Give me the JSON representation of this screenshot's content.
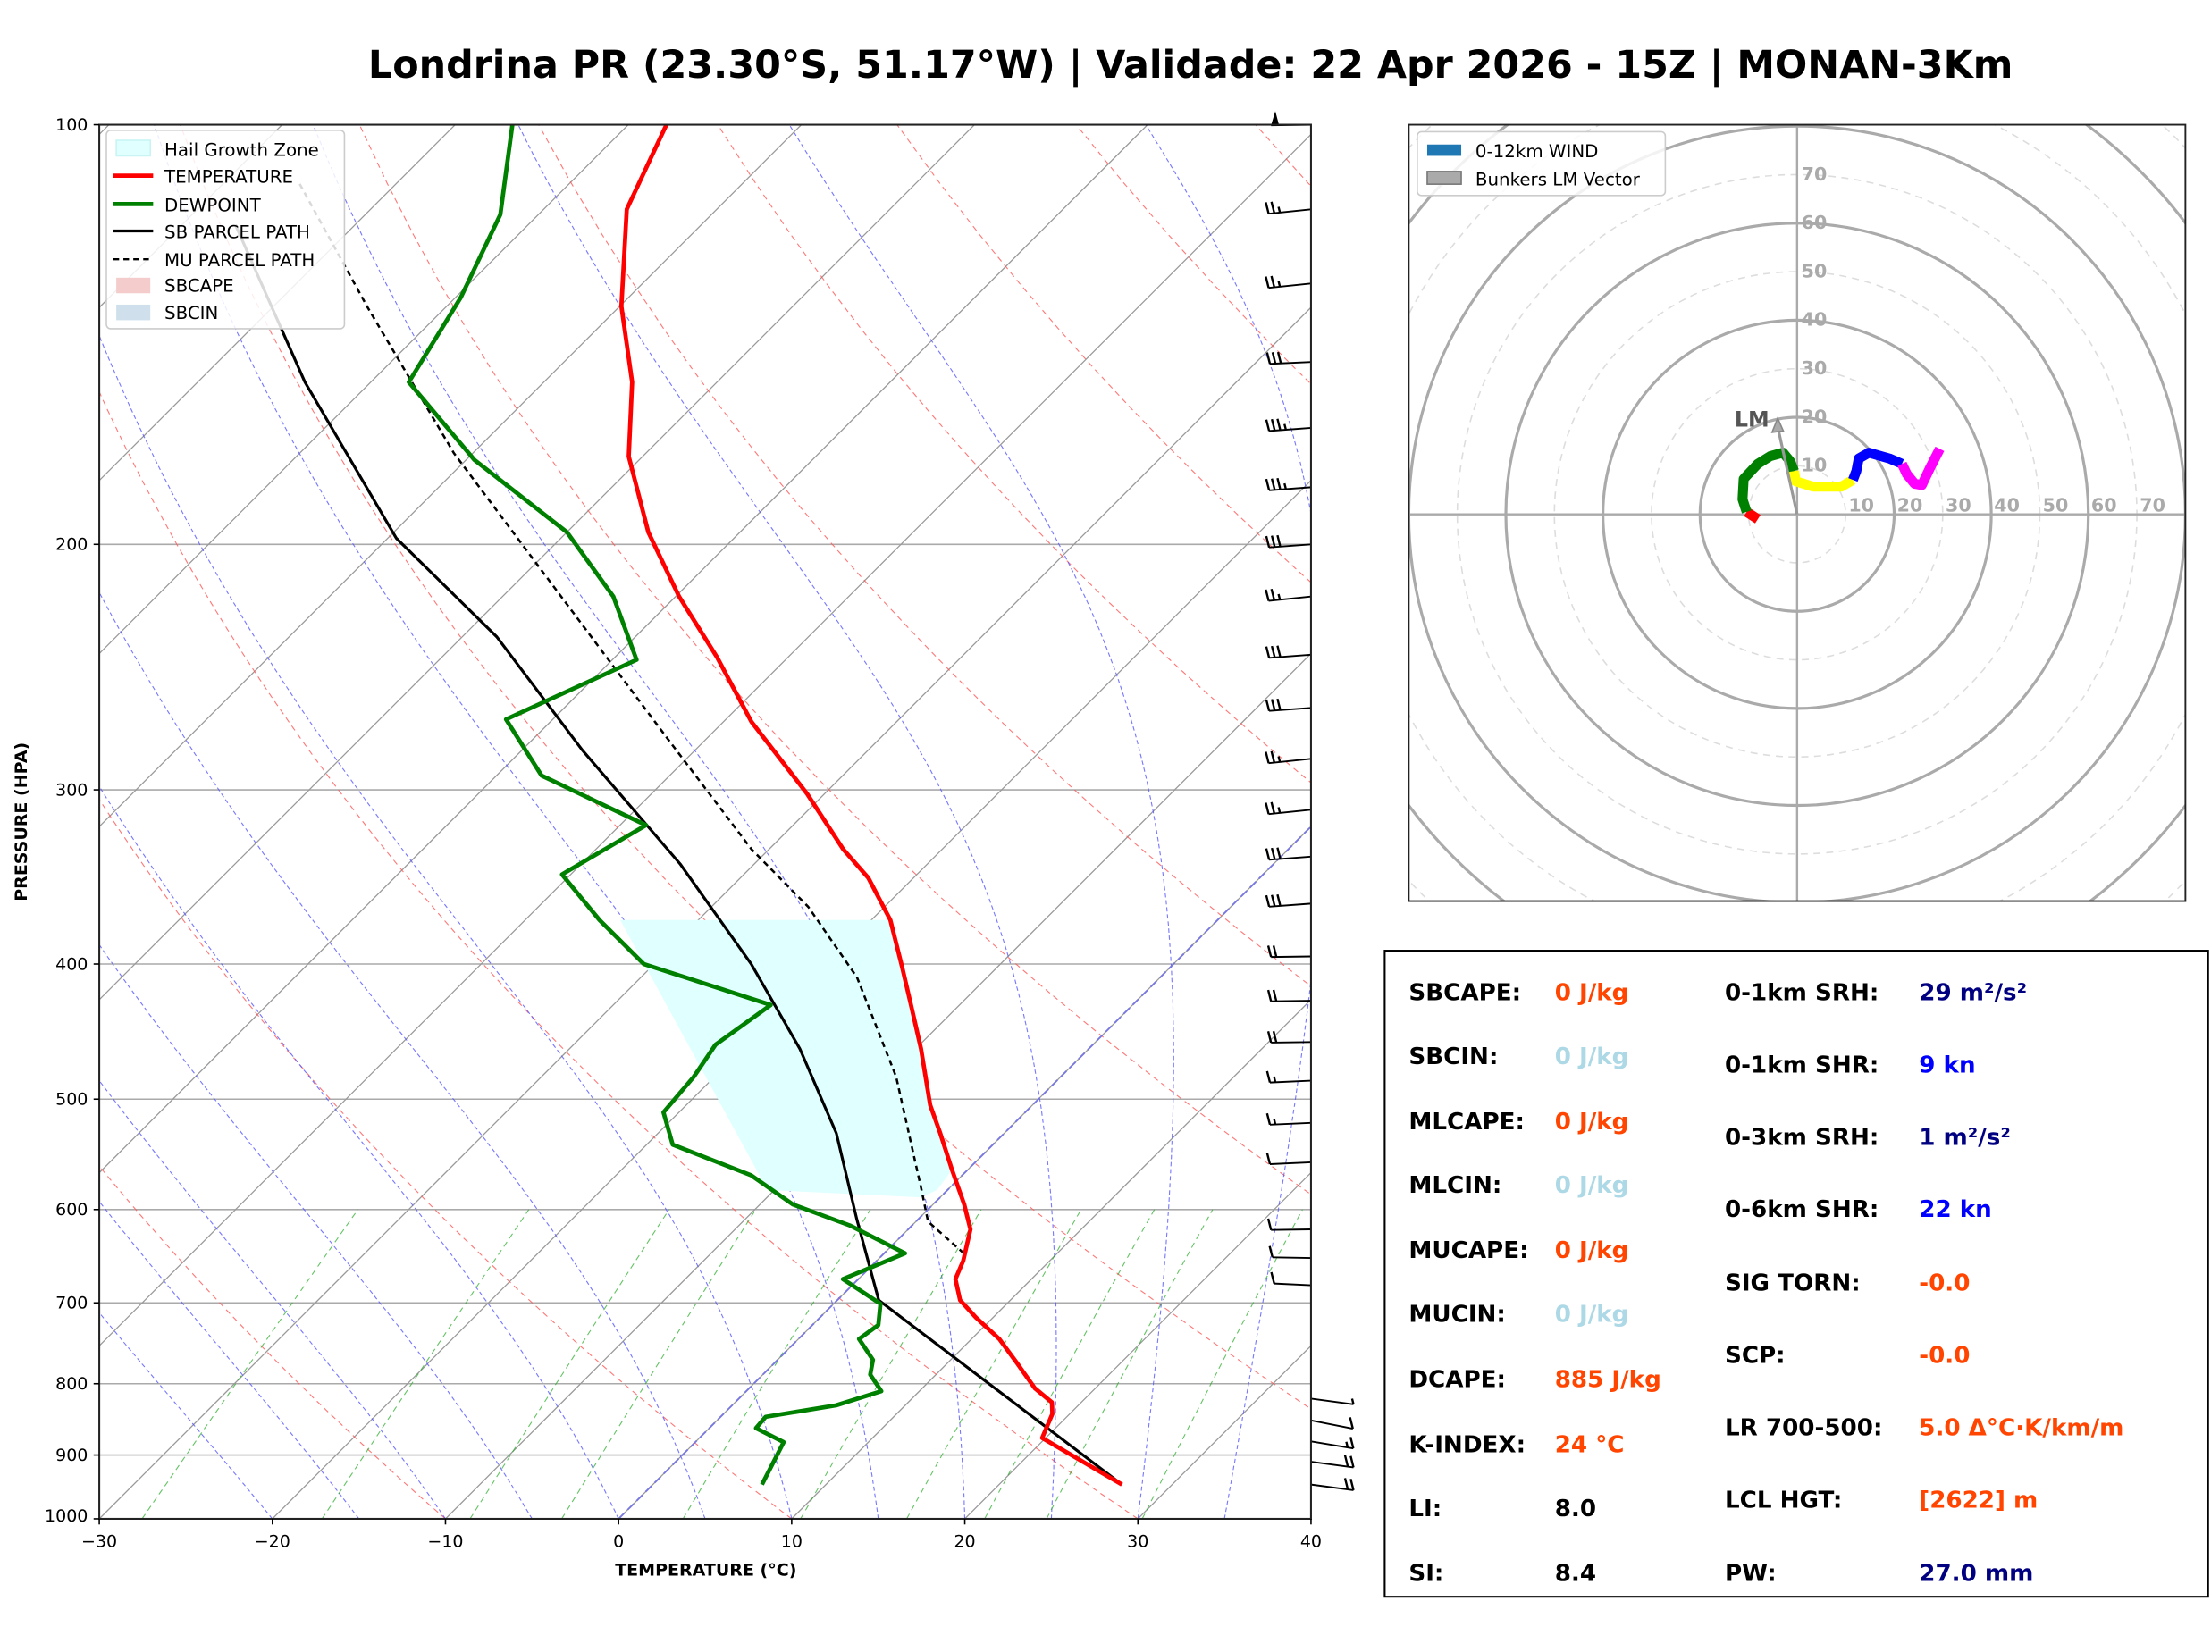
{
  "title": "Londrina PR (23.30°S, 51.17°W) | Validade: 22 Apr 2026 - 15Z | MONAN-3Km",
  "chart_data": [
    {
      "type": "line",
      "name": "skew-t",
      "xlabel": "TEMPERATURE (°C)",
      "ylabel": "PRESSURE (HPA)",
      "xlim": [
        -30,
        40
      ],
      "ylim": [
        1000,
        100
      ],
      "yscale": "log",
      "x_ticks": [
        "−30",
        "−20",
        "−10",
        "0",
        "10",
        "20",
        "30",
        "40"
      ],
      "x_tick_values": [
        -30,
        -20,
        -10,
        0,
        10,
        20,
        30,
        40
      ],
      "y_ticks": [
        "100",
        "200",
        "300",
        "400",
        "500",
        "600",
        "700",
        "800",
        "900",
        "1000"
      ],
      "y_tick_values": [
        100,
        200,
        300,
        400,
        500,
        600,
        700,
        800,
        900,
        1000
      ],
      "legend": {
        "position": "top-left",
        "entries": [
          "Hail Growth Zone",
          "TEMPERATURE",
          "DEWPOINT",
          "SB PARCEL PATH",
          "MU PARCEL PATH",
          "SBCAPE",
          "SBCIN"
        ]
      },
      "series": [
        {
          "name": "TEMPERATURE",
          "color": "#ff0000",
          "pressure": [
            945,
            875,
            841,
            825,
            806,
            773,
            743,
            717,
            697,
            673,
            653,
            620,
            595,
            562,
            529,
            505,
            460,
            430,
            402,
            372,
            347,
            331,
            302,
            268,
            241,
            218,
            196,
            173,
            153,
            135,
            115,
            100
          ],
          "temperature": [
            27.1,
            19.8,
            19.0,
            18.3,
            16.5,
            14.0,
            11.6,
            9.0,
            7.1,
            5.6,
            5.0,
            3.6,
            1.8,
            -0.9,
            -3.7,
            -5.9,
            -9.7,
            -12.6,
            -15.5,
            -18.9,
            -22.6,
            -25.7,
            -31.0,
            -38.4,
            -44.1,
            -49.8,
            -55.3,
            -60.8,
            -64.9,
            -69.9,
            -75.2,
            -77.8
          ]
        },
        {
          "name": "DEWPOINT",
          "color": "#008000",
          "pressure": [
            945,
            881,
            861,
            845,
            829,
            810,
            788,
            769,
            743,
            726,
            701,
            673,
            645,
            616,
            595,
            567,
            539,
            511,
            482,
            457,
            428,
            400,
            372,
            345,
            318,
            293,
            267,
            242,
            218,
            196,
            174,
            153,
            133,
            116,
            100
          ],
          "temperature": [
            6.3,
            5.1,
            2.7,
            2.6,
            6.0,
            7.8,
            6.2,
            5.5,
            3.5,
            3.8,
            2.7,
            -0.9,
            1.2,
            -3.6,
            -8.1,
            -12.2,
            -18.5,
            -20.9,
            -21.2,
            -21.8,
            -20.9,
            -30.6,
            -35.7,
            -40.5,
            -38.5,
            -47.4,
            -52.7,
            -48.6,
            -53.6,
            -60.0,
            -69.5,
            -77.8,
            -79.7,
            -82.2,
            -86.7
          ]
        },
        {
          "name": "SB PARCEL PATH",
          "color": "#000000",
          "pressure": [
            945,
            697,
            609,
            529,
            460,
            400,
            339,
            281,
            233,
            198,
            153,
            118
          ],
          "temperature": [
            27.1,
            2.4,
            -3.6,
            -9.7,
            -16.7,
            -24.4,
            -34.3,
            -46.5,
            -58.0,
            -69.5,
            -83.8,
            -96.9
          ]
        },
        {
          "name": "MU PARCEL PATH",
          "color": "#000000",
          "pressure": [
            645,
            612,
            581,
            482,
            409,
            364,
            331,
            275,
            222,
            172,
            135,
            110
          ],
          "temperature": [
            4.6,
            0.7,
            -1.5,
            -9.5,
            -17.5,
            -24.4,
            -31.0,
            -42.4,
            -55.5,
            -71.1,
            -84.6,
            -95.7
          ]
        }
      ],
      "hail_growth_zone": {
        "color": "#e0ffff",
        "pressure": [
          372,
          402,
          430,
          460,
          505,
          529,
          562,
          581,
          588,
          581
        ],
        "temperature": [
          -18.9,
          -15.5,
          -12.6,
          -9.7,
          -5.9,
          -3.7,
          -0.9,
          -0.6,
          -1.1,
          -10.4
        ],
        "left_edge": {
          "pressure": [
            581,
            372
          ],
          "temperature": [
            -10.4,
            -34.5
          ]
        }
      },
      "wind_barbs": [
        {
          "pressure": 100,
          "speed_kt": 50,
          "direction": 290
        },
        {
          "pressure": 115,
          "speed_kt": 25,
          "direction": 275
        },
        {
          "pressure": 130,
          "speed_kt": 25,
          "direction": 275
        },
        {
          "pressure": 148,
          "speed_kt": 30,
          "direction": 285
        },
        {
          "pressure": 165,
          "speed_kt": 35,
          "direction": 280
        },
        {
          "pressure": 182,
          "speed_kt": 35,
          "direction": 280
        },
        {
          "pressure": 200,
          "speed_kt": 30,
          "direction": 280
        },
        {
          "pressure": 218,
          "speed_kt": 25,
          "direction": 275
        },
        {
          "pressure": 240,
          "speed_kt": 30,
          "direction": 280
        },
        {
          "pressure": 262,
          "speed_kt": 30,
          "direction": 280
        },
        {
          "pressure": 285,
          "speed_kt": 25,
          "direction": 275
        },
        {
          "pressure": 310,
          "speed_kt": 25,
          "direction": 275
        },
        {
          "pressure": 335,
          "speed_kt": 30,
          "direction": 280
        },
        {
          "pressure": 362,
          "speed_kt": 30,
          "direction": 280
        },
        {
          "pressure": 395,
          "speed_kt": 20,
          "direction": 290
        },
        {
          "pressure": 425,
          "speed_kt": 20,
          "direction": 290
        },
        {
          "pressure": 455,
          "speed_kt": 20,
          "direction": 290
        },
        {
          "pressure": 485,
          "speed_kt": 15,
          "direction": 285
        },
        {
          "pressure": 520,
          "speed_kt": 15,
          "direction": 285
        },
        {
          "pressure": 555,
          "speed_kt": 10,
          "direction": 285
        },
        {
          "pressure": 620,
          "speed_kt": 10,
          "direction": 290
        },
        {
          "pressure": 650,
          "speed_kt": 10,
          "direction": 295
        },
        {
          "pressure": 680,
          "speed_kt": 10,
          "direction": 300
        },
        {
          "pressure": 820,
          "speed_kt": 5,
          "direction": 90
        },
        {
          "pressure": 850,
          "speed_kt": 10,
          "direction": 100
        },
        {
          "pressure": 880,
          "speed_kt": 15,
          "direction": 95
        },
        {
          "pressure": 910,
          "speed_kt": 20,
          "direction": 90
        },
        {
          "pressure": 945,
          "speed_kt": 20,
          "direction": 90
        }
      ]
    },
    {
      "type": "line",
      "name": "hodograph",
      "units": "kt",
      "ring_labels": [
        "10",
        "20",
        "30",
        "40",
        "50",
        "60",
        "70"
      ],
      "ring_values": [
        10,
        20,
        30,
        40,
        50,
        60,
        70
      ],
      "range": [
        -80,
        80
      ],
      "legend": {
        "position": "top-left",
        "entries": [
          "0-12km WIND",
          "Bunkers LM Vector"
        ]
      },
      "lm_label": "LM",
      "lm_vector": {
        "u": -4.0,
        "v": 19.8
      },
      "segments": [
        {
          "color": "#ff0000",
          "u": [
            -8.1,
            -10.4
          ],
          "v": [
            -1.0,
            0.5
          ]
        },
        {
          "color": "#008000",
          "u": [
            -10.4,
            -11.25,
            -11.0,
            -8.1,
            -5.5,
            -2.9,
            -1.4,
            -0.6
          ],
          "v": [
            0.5,
            3.1,
            7.3,
            10.4,
            12.0,
            12.7,
            10.9,
            8.9
          ]
        },
        {
          "color": "#ffff00",
          "u": [
            -0.6,
            -0.3,
            3.3,
            6.5,
            9.1,
            11.5
          ],
          "v": [
            8.9,
            6.8,
            5.7,
            5.7,
            5.7,
            7.1
          ]
        },
        {
          "color": "#0000ff",
          "u": [
            11.5,
            12.2,
            12.7,
            14.8,
            19.0,
            21.6
          ],
          "v": [
            7.1,
            8.9,
            11.5,
            12.7,
            11.5,
            10.4
          ]
        },
        {
          "color": "#ff00ff",
          "u": [
            21.6,
            22.6,
            24.2,
            25.7,
            27.3,
            29.4
          ],
          "v": [
            10.4,
            8.3,
            6.3,
            6.0,
            9.4,
            13.5
          ]
        }
      ]
    }
  ],
  "stats": {
    "left": [
      {
        "label": "SBCAPE:",
        "value": "0 J/kg",
        "color": "#ff4500"
      },
      {
        "label": "SBCIN:",
        "value": "0 J/kg",
        "color": "#add8e6"
      },
      {
        "label": "MLCAPE:",
        "value": "0 J/kg",
        "color": "#ff4500"
      },
      {
        "label": "MLCIN:",
        "value": "0 J/kg",
        "color": "#add8e6"
      },
      {
        "label": "MUCAPE:",
        "value": "0 J/kg",
        "color": "#ff4500"
      },
      {
        "label": "MUCIN:",
        "value": "0 J/kg",
        "color": "#add8e6"
      },
      {
        "label": "DCAPE:",
        "value": "885 J/kg",
        "color": "#ff4500"
      },
      {
        "label": "K-INDEX:",
        "value": "24 °C",
        "color": "#ff4500"
      },
      {
        "label": "LI:",
        "value": "8.0",
        "color": "#000000"
      },
      {
        "label": "SI:",
        "value": "8.4",
        "color": "#000000"
      }
    ],
    "right": [
      {
        "label": "0-1km SRH:",
        "value": "29 m²/s²",
        "color": "#000080"
      },
      {
        "label": "0-1km SHR:",
        "value": "9 kn",
        "color": "#0000ff"
      },
      {
        "label": "0-3km SRH:",
        "value": "1 m²/s²",
        "color": "#000080"
      },
      {
        "label": "0-6km SHR:",
        "value": "22 kn",
        "color": "#0000ff"
      },
      {
        "label": "SIG TORN:",
        "value": "-0.0",
        "color": "#ff4500"
      },
      {
        "label": "SCP:",
        "value": "-0.0",
        "color": "#ff4500"
      },
      {
        "label": "LR 700-500:",
        "value": "5.0 Δ°C·K/km/m",
        "color": "#ff4500"
      },
      {
        "label": "LCL HGT:",
        "value": "[2622] m",
        "color": "#ff4500"
      },
      {
        "label": "PW:",
        "value": "27.0 mm",
        "color": "#000080"
      }
    ]
  }
}
